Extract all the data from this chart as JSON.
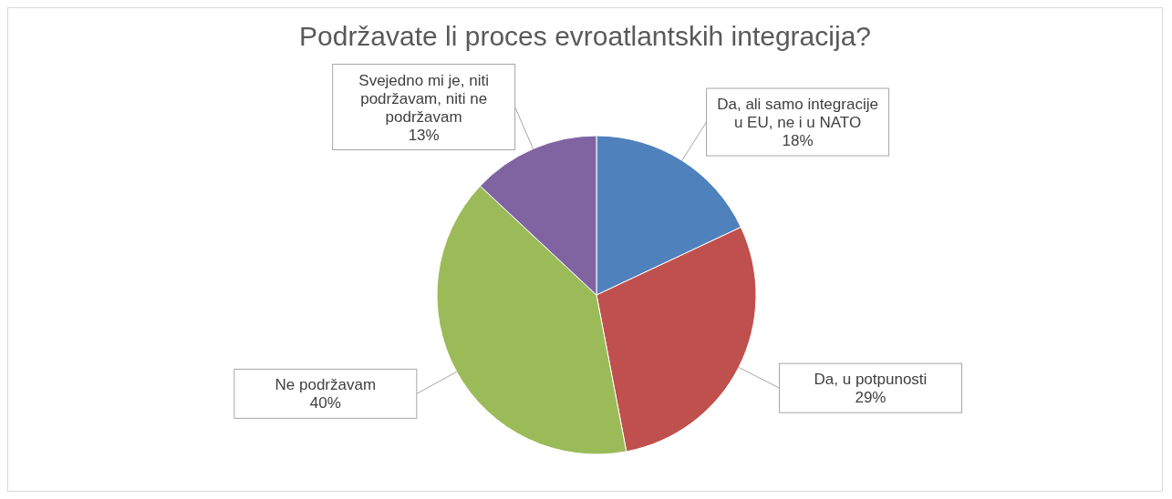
{
  "chart_data": {
    "type": "pie",
    "title": "Podržavate li proces evroatlantskih integracija?",
    "categories": [
      "Da, ali samo integracije u EU, ne i u NATO",
      "Da, u potpunosti",
      "Ne podržavam",
      "Svejedno mi je, niti podržavam, niti ne podržavam"
    ],
    "values": [
      18,
      29,
      40,
      13
    ],
    "colors": [
      "#4f81bd",
      "#c0504d",
      "#9bbb59",
      "#8064a2"
    ],
    "value_labels": [
      "18%",
      "29%",
      "40%",
      "13%"
    ],
    "legend": false
  }
}
